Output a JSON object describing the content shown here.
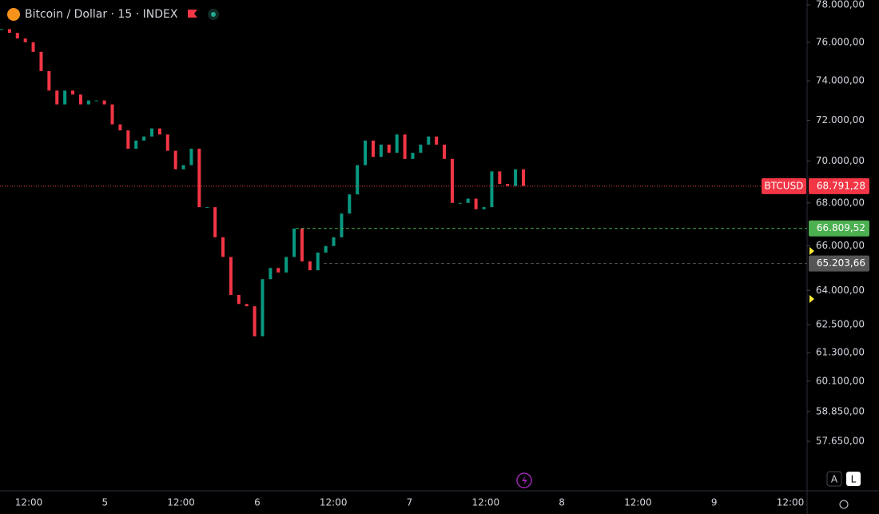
{
  "header": {
    "title": "Bitcoin / Dollar · 15 · INDEX"
  },
  "price_axis": {
    "scale": "log",
    "range": [
      57650,
      78000
    ],
    "ticks": [
      {
        "value": 78000,
        "label": "78.000,00"
      },
      {
        "value": 76000,
        "label": "76.000,00"
      },
      {
        "value": 74000,
        "label": "74.000,00"
      },
      {
        "value": 72000,
        "label": "72.000,00"
      },
      {
        "value": 70000,
        "label": "70.000,00"
      },
      {
        "value": 68000,
        "label": "68.000,00"
      },
      {
        "value": 66000,
        "label": "66.000,00"
      },
      {
        "value": 64000,
        "label": "64.000,00"
      },
      {
        "value": 62500,
        "label": "62.500,00"
      },
      {
        "value": 61300,
        "label": "61.300,00"
      },
      {
        "value": 60100,
        "label": "60.100,00"
      },
      {
        "value": 58850,
        "label": "58.850,00"
      },
      {
        "value": 57650,
        "label": "57.650,00"
      }
    ]
  },
  "time_axis": {
    "labels": [
      "12:00",
      "5",
      "12:00",
      "6",
      "12:00",
      "7",
      "12:00",
      "8",
      "12:00",
      "9",
      "12:00"
    ]
  },
  "price_lines": [
    {
      "name": "BTCUSD",
      "value": 68791.28,
      "label": "68.791,28",
      "color": "#f23645"
    },
    {
      "value": 66809.52,
      "label": "66.809,52",
      "color": "#4caf50"
    },
    {
      "value": 65203.66,
      "label": "65.203,66",
      "color": "#555555"
    }
  ],
  "closes": [
    76700,
    76500,
    76200,
    76000,
    75500,
    74500,
    73500,
    72800,
    73500,
    73300,
    72800,
    73000,
    73000,
    72800,
    71800,
    71500,
    70600,
    71000,
    71200,
    71600,
    71300,
    70500,
    69600,
    69800,
    70600,
    67800,
    67800,
    66400,
    65500,
    63800,
    63400,
    63300,
    62000,
    64500,
    65000,
    64800,
    65500,
    66800,
    65300,
    64900,
    65700,
    66000,
    66400,
    67500,
    68400,
    69800,
    71000,
    70200,
    70800,
    70400,
    71300,
    70100,
    70400,
    70800,
    71200,
    70800,
    70100,
    68000,
    68000,
    68200,
    67700,
    67800,
    69500,
    68900,
    68800,
    69600,
    68800
  ],
  "scale_buttons": [
    "A",
    "L"
  ]
}
